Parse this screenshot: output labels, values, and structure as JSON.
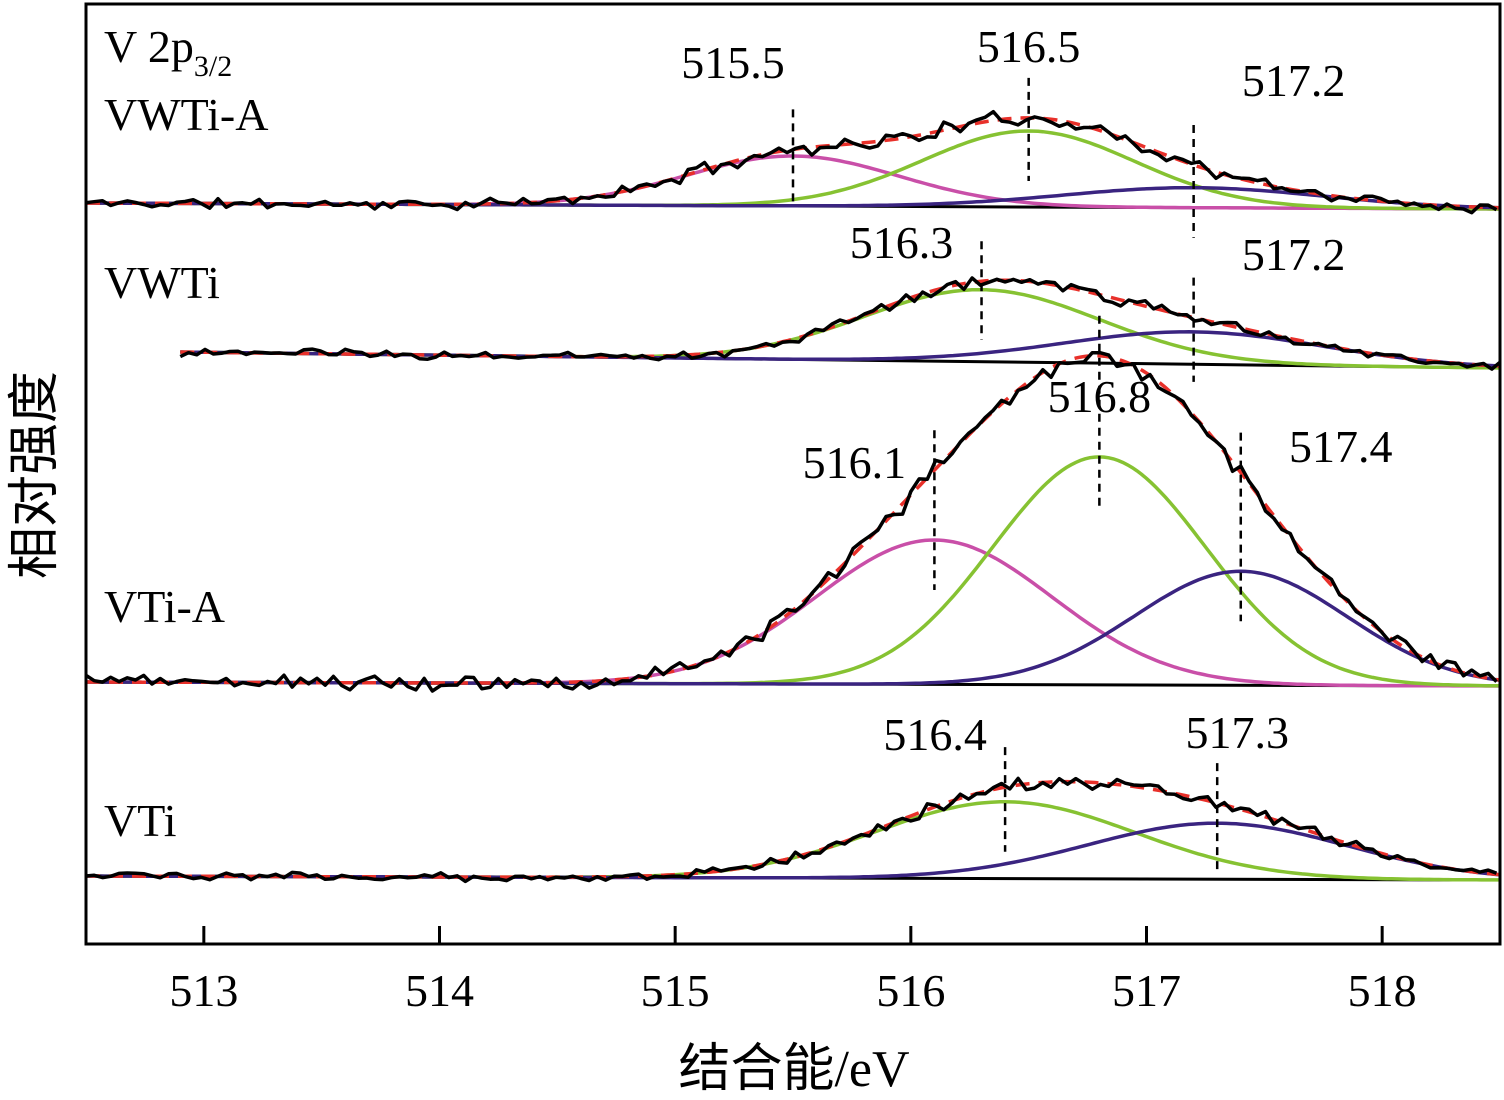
{
  "chart_data": {
    "type": "line",
    "title": "V 2p3/2",
    "title_main": "V 2p",
    "title_sub": "3/2",
    "xlabel": "结合能/eV",
    "ylabel": "相对强度",
    "xlim": [
      512.5,
      518.5
    ],
    "xticks": [
      "513",
      "514",
      "515",
      "516",
      "517",
      "518"
    ],
    "xtick_values": [
      513,
      514,
      515,
      516,
      517,
      518
    ],
    "colors": {
      "raw": "#000000",
      "envelope": "#e8302a",
      "peak_A": "#c94fa8",
      "peak_B": "#86c232",
      "peak_C": "#3a2480"
    },
    "series_styles": {
      "raw": "solid",
      "envelope": "dashed",
      "components": "solid"
    },
    "panels": [
      {
        "name": "VWTi-A",
        "x_start": 512.5,
        "noise_seed": 11,
        "noise_amp": 0.35,
        "peaks": [
          {
            "center": 515.5,
            "label": "515.5",
            "color": "peak_A",
            "sigma": 0.45,
            "height": 0.25
          },
          {
            "center": 516.5,
            "label": "516.5",
            "color": "peak_B",
            "sigma": 0.45,
            "height": 0.38
          },
          {
            "center": 517.2,
            "label": "517.2",
            "color": "peak_C",
            "sigma": 0.55,
            "height": 0.1
          }
        ]
      },
      {
        "name": "VWTi",
        "x_start": 512.9,
        "noise_seed": 23,
        "noise_amp": 0.3,
        "peaks": [
          {
            "center": 516.3,
            "label": "516.3",
            "color": "peak_B",
            "sigma": 0.5,
            "height": 0.4
          },
          {
            "center": 517.2,
            "label": "517.2",
            "color": "peak_C",
            "sigma": 0.55,
            "height": 0.18
          }
        ]
      },
      {
        "name": "VTi-A",
        "x_start": 512.5,
        "noise_seed": 37,
        "noise_amp": 0.12,
        "peaks": [
          {
            "center": 516.1,
            "label": "516.1",
            "color": "peak_A",
            "sigma": 0.5,
            "height": 0.38
          },
          {
            "center": 516.8,
            "label": "516.8",
            "color": "peak_B",
            "sigma": 0.45,
            "height": 0.6
          },
          {
            "center": 517.4,
            "label": "517.4",
            "color": "peak_C",
            "sigma": 0.45,
            "height": 0.3
          }
        ]
      },
      {
        "name": "VTi",
        "x_start": 512.5,
        "noise_seed": 53,
        "noise_amp": 0.3,
        "peaks": [
          {
            "center": 516.4,
            "label": "516.4",
            "color": "peak_B",
            "sigma": 0.55,
            "height": 0.48
          },
          {
            "center": 517.3,
            "label": "517.3",
            "color": "peak_C",
            "sigma": 0.55,
            "height": 0.35
          }
        ]
      }
    ]
  }
}
